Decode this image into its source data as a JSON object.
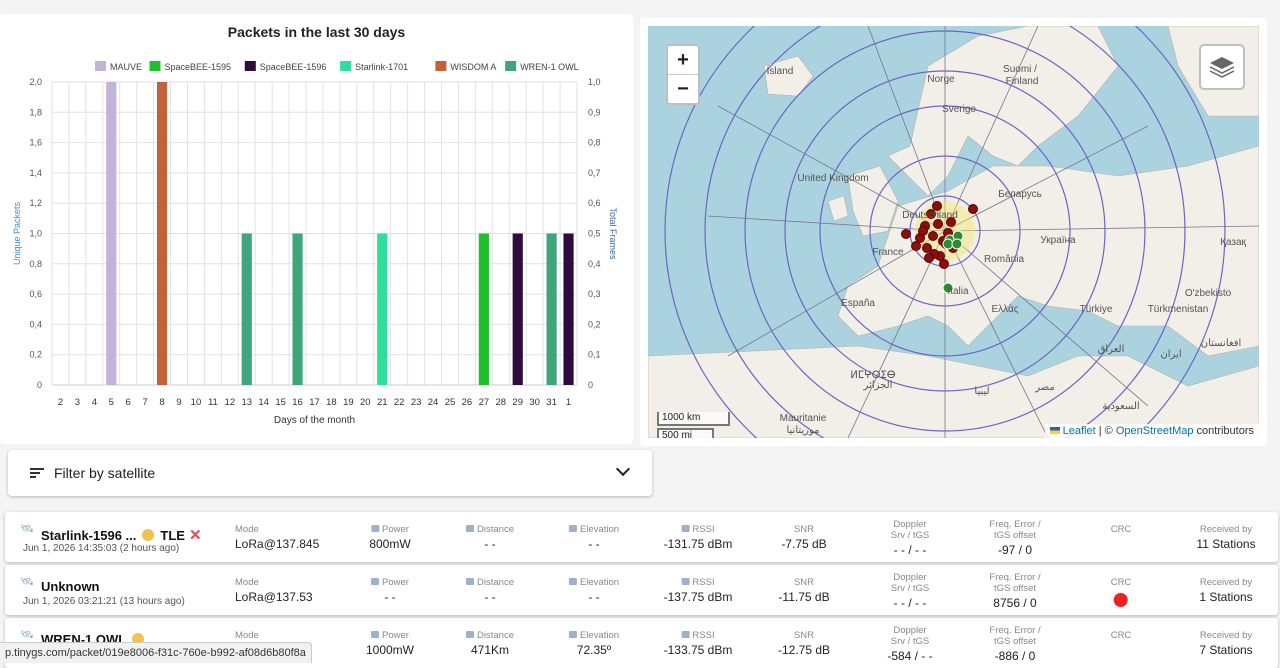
{
  "chart": {
    "title": "Packets in the last 30 days",
    "xlabel": "Days of the month",
    "ylabel_left": "Unique Packets",
    "ylabel_right": "Total Frames"
  },
  "chart_data": {
    "type": "bar",
    "title": "Packets in the last 30 days",
    "xlabel": "Days of the month",
    "ylabel": "Unique Packets",
    "y2label": "Total Frames",
    "ylim": [
      0,
      2
    ],
    "y2lim": [
      0,
      1
    ],
    "yticks": [
      "0",
      "0,2",
      "0,4",
      "0,6",
      "0,8",
      "1,0",
      "1,2",
      "1,4",
      "1,6",
      "1,8",
      "2,0"
    ],
    "y2ticks": [
      "0",
      "0,1",
      "0,2",
      "0,3",
      "0,4",
      "0,5",
      "0,6",
      "0,7",
      "0,8",
      "0,9",
      "1,0"
    ],
    "categories": [
      "2",
      "3",
      "4",
      "5",
      "6",
      "7",
      "8",
      "9",
      "10",
      "11",
      "12",
      "13",
      "14",
      "15",
      "16",
      "17",
      "18",
      "19",
      "20",
      "21",
      "22",
      "23",
      "24",
      "25",
      "26",
      "27",
      "28",
      "29",
      "30",
      "31",
      "1"
    ],
    "legend_position": "top",
    "grid": true,
    "series": [
      {
        "name": "MAUVE",
        "color": "#c2b3da",
        "points": [
          {
            "day": "5",
            "value": 2
          }
        ]
      },
      {
        "name": "SpaceBEE-1595",
        "color": "#1fc12b",
        "points": [
          {
            "day": "27",
            "value": 1
          }
        ]
      },
      {
        "name": "SpaceBEE-1596",
        "color": "#2e0a3d",
        "points": [
          {
            "day": "29",
            "value": 1
          },
          {
            "day": "1",
            "value": 1
          }
        ]
      },
      {
        "name": "Starlink-1701",
        "color": "#30dd9c",
        "points": [
          {
            "day": "21",
            "value": 1
          }
        ]
      },
      {
        "name": "WISDOM A",
        "color": "#c1623a",
        "points": [
          {
            "day": "8",
            "value": 2
          }
        ]
      },
      {
        "name": "WREN-1 OWL",
        "color": "#3fa67c",
        "points": [
          {
            "day": "13",
            "value": 1
          },
          {
            "day": "16",
            "value": 1
          },
          {
            "day": "31",
            "value": 1
          }
        ]
      }
    ]
  },
  "map": {
    "zoom_in": "+",
    "zoom_out": "−",
    "scale_km": "1000 km",
    "scale_mi": "500 mi",
    "attr_leaflet": "Leaflet",
    "attr_sep": " | © ",
    "attr_osm": "OpenStreetMap",
    "attr_contrib": " contributors",
    "labels": [
      "Ísland",
      "Norge",
      "Suomi /",
      "Finland",
      "Sverige",
      "United Kingdom",
      "Беларусь",
      "Deutschland",
      "Україна",
      "Қазақ",
      "France",
      "România",
      "España",
      "Italia",
      "Ελλάς",
      "Türkiye",
      "O'zbekisto",
      "Türkmenistan",
      "ⵍⵎⵖⵔⵉⴱ",
      "الجزائر",
      "ليبيا",
      "مصر",
      "العراق",
      "ایران",
      "افغانستان",
      "Mauritanie",
      "موريتانيا",
      "السعودية"
    ]
  },
  "filter": {
    "label": "Filter by satellite"
  },
  "columns": {
    "mode": "Mode",
    "power": "Power",
    "distance": "Distance",
    "elevation": "Elevation",
    "rssi": "RSSI",
    "snr": "SNR",
    "doppler1": "Doppler",
    "doppler2": "Srv / tGS",
    "freq1": "Freq. Error /",
    "freq2": "tGS offset",
    "crc": "CRC",
    "received": "Received by"
  },
  "packets": [
    {
      "name": "Starlink-1596 ...",
      "tle": "TLE",
      "tle_x": "✕",
      "date": "Jun 1, 2026 14:35:03 (2 hours ago)",
      "mode": "LoRa@137.845",
      "power": "800mW",
      "distance": "- -",
      "elevation": "- -",
      "rssi": "-131.75 dBm",
      "snr": "-7.75 dB",
      "doppler": "- - / - -",
      "freq": "-97 / 0",
      "crc": "",
      "received": "11 Stations"
    },
    {
      "name": "Unknown",
      "date": "Jun 1, 2026 03:21:21 (13 hours ago)",
      "mode": "LoRa@137.53",
      "power": "- -",
      "distance": "- -",
      "elevation": "- -",
      "rssi": "-137.75 dBm",
      "snr": "-11.75 dB",
      "doppler": "- - / - -",
      "freq": "8756 / 0",
      "crc": "error",
      "received": "1 Stations"
    },
    {
      "name": "WREN-1 OWL",
      "date": "",
      "mode": "",
      "power": "1000mW",
      "distance": "471Km",
      "elevation": "72.35º",
      "rssi": "-133.75 dBm",
      "snr": "-12.75 dB",
      "doppler": "-584 / - -",
      "freq": "-886 / 0",
      "crc": "",
      "received": "7 Stations"
    }
  ],
  "status_url": "p.tinygs.com/packet/019e8006-f31c-760e-b992-af08d6b80f8a"
}
